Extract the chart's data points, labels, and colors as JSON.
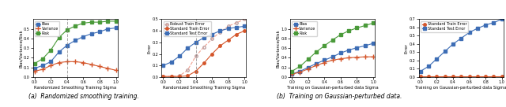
{
  "subplot1": {
    "xlabel": "Randomized Smoothing Training Sigma",
    "ylabel": "Bias/Variance/Risk",
    "x": [
      0.0,
      0.1,
      0.2,
      0.3,
      0.4,
      0.5,
      0.6,
      0.7,
      0.8,
      0.9,
      1.0
    ],
    "bias": [
      0.09,
      0.12,
      0.16,
      0.26,
      0.33,
      0.38,
      0.42,
      0.45,
      0.47,
      0.5,
      0.51
    ],
    "variance": [
      0.06,
      0.08,
      0.12,
      0.15,
      0.16,
      0.16,
      0.15,
      0.13,
      0.11,
      0.09,
      0.07
    ],
    "risk": [
      0.14,
      0.19,
      0.28,
      0.41,
      0.49,
      0.53,
      0.56,
      0.57,
      0.57,
      0.58,
      0.58
    ],
    "vline": 0.4,
    "ylim": [
      0.0,
      0.6
    ],
    "yticks": [
      0.0,
      0.1,
      0.2,
      0.3,
      0.4,
      0.5
    ],
    "xticks": [
      0.0,
      0.2,
      0.4,
      0.6,
      0.8,
      1.0
    ]
  },
  "subplot2": {
    "xlabel": "Randomized Smoothing Training Sigma",
    "ylabel": "Error",
    "x": [
      0.0,
      0.1,
      0.2,
      0.3,
      0.4,
      0.5,
      0.6,
      0.7,
      0.8,
      0.9,
      1.0
    ],
    "robust_train": [
      0.005,
      0.005,
      0.01,
      0.06,
      0.18,
      0.26,
      0.33,
      0.39,
      0.44,
      0.47,
      0.5
    ],
    "std_train": [
      0.005,
      0.005,
      0.005,
      0.01,
      0.05,
      0.12,
      0.2,
      0.27,
      0.32,
      0.37,
      0.4
    ],
    "std_test": [
      0.1,
      0.13,
      0.18,
      0.25,
      0.3,
      0.34,
      0.37,
      0.4,
      0.42,
      0.43,
      0.44
    ],
    "vline": 0.4,
    "ylim": [
      0.0,
      0.5
    ],
    "yticks": [
      0.0,
      0.1,
      0.2,
      0.3,
      0.4,
      0.5
    ],
    "xticks": [
      0.0,
      0.2,
      0.4,
      0.6,
      0.8,
      1.0
    ]
  },
  "subplot3": {
    "xlabel": "Training on Gaussian-perturbed data Sigma",
    "ylabel": "Bias/Variance/Risk",
    "x": [
      0.0,
      0.1,
      0.2,
      0.3,
      0.4,
      0.5,
      0.6,
      0.7,
      0.8,
      0.9,
      1.0
    ],
    "bias": [
      0.06,
      0.12,
      0.2,
      0.28,
      0.35,
      0.42,
      0.5,
      0.56,
      0.61,
      0.65,
      0.7
    ],
    "variance": [
      0.06,
      0.1,
      0.17,
      0.24,
      0.3,
      0.35,
      0.38,
      0.4,
      0.41,
      0.42,
      0.42
    ],
    "risk": [
      0.12,
      0.22,
      0.37,
      0.52,
      0.65,
      0.77,
      0.88,
      0.96,
      1.02,
      1.07,
      1.12
    ],
    "ylim": [
      0.0,
      1.2
    ],
    "yticks": [
      0.0,
      0.2,
      0.4,
      0.6,
      0.8,
      1.0
    ],
    "xticks": [
      0.0,
      0.2,
      0.4,
      0.6,
      0.8,
      1.0
    ]
  },
  "subplot4": {
    "xlabel": "Training on Gaussian-perturbed data Sigma",
    "ylabel": "Error",
    "x": [
      0.0,
      0.1,
      0.2,
      0.3,
      0.4,
      0.5,
      0.6,
      0.7,
      0.8,
      0.9,
      1.0
    ],
    "std_train": [
      0.005,
      0.005,
      0.005,
      0.005,
      0.005,
      0.005,
      0.005,
      0.005,
      0.005,
      0.005,
      0.005
    ],
    "std_test": [
      0.07,
      0.13,
      0.22,
      0.31,
      0.4,
      0.47,
      0.54,
      0.59,
      0.63,
      0.66,
      0.7
    ],
    "ylim": [
      0.0,
      0.7
    ],
    "yticks": [
      0.0,
      0.1,
      0.2,
      0.3,
      0.4,
      0.5,
      0.6,
      0.7
    ],
    "xticks": [
      0.0,
      0.2,
      0.4,
      0.6,
      0.8,
      1.0
    ]
  },
  "caption_a": "(a)  Randomized smoothing training.",
  "caption_b": "(b)  Training on Gaussian-perturbed data.",
  "colors": {
    "bias": "#3d6db5",
    "variance": "#d4552a",
    "risk": "#4a9a3a",
    "robust_train_line": "#f0a090",
    "robust_train_marker": "#c0a0a0",
    "std_train": "#d4552a",
    "std_test": "#3d6db5"
  }
}
